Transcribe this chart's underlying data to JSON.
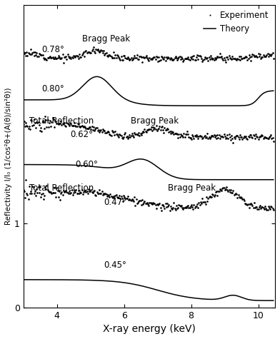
{
  "xlabel": "X-ray energy (keV)",
  "ylabel": "Reflectivity I/I₀ (1/cos²θ+(A(θ)/sin²θ))",
  "xmin": 3.0,
  "xmax": 10.5,
  "ymin": 0,
  "ymax": 3.6,
  "ytick_pos": [
    0,
    1
  ],
  "ytick_labels": [
    "0",
    "1"
  ],
  "xticks": [
    4,
    6,
    8,
    10
  ],
  "offsets": {
    "exp078": 2.7,
    "theory080": 2.35,
    "exp062": 1.9,
    "theory060": 1.5,
    "exp047": 1.1,
    "theory045": 0.05
  },
  "background": "#ffffff"
}
